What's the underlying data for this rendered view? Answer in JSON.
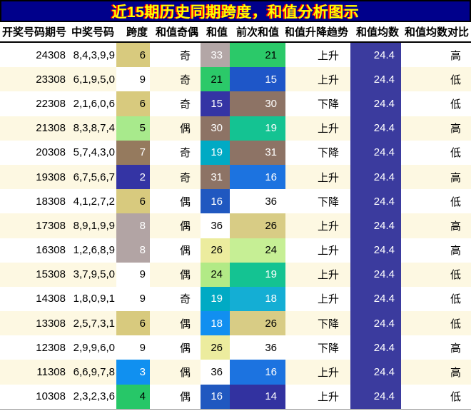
{
  "title": "近15期历史同期跨度，和值分析图示",
  "colors": {
    "title_bg": "#00008b",
    "title_text": "#ffff00",
    "title_shadow": "#ff0000",
    "row_stripe_bg": "#fdf8e2",
    "row_bg": "#ffffff",
    "mean_column_bg": "#3b3b9e",
    "mean_column_text": "#ffffff",
    "border": "#000000"
  },
  "chart_data": {
    "type": "table",
    "title": "近15期历史同期跨度，和值分析图示",
    "columns": [
      "开奖号码期号",
      "中奖号码",
      "跨度",
      "和值奇偶",
      "和值",
      "前次和值",
      "和值升降趋势",
      "和值均数",
      "和值均数对比"
    ],
    "rows": [
      {
        "cells": [
          {
            "t": "24308"
          },
          {
            "t": "8,4,3,9,9"
          },
          {
            "t": "6",
            "bg": "#d8ca7e"
          },
          {
            "t": "奇"
          },
          {
            "t": "33",
            "bg": "#b3a6a6",
            "fg": "#ffffff"
          },
          {
            "t": "21",
            "bg": "#2bc969"
          },
          {
            "t": "上升"
          },
          {
            "t": "24.4"
          },
          {
            "t": "高"
          }
        ]
      },
      {
        "cells": [
          {
            "t": "23308"
          },
          {
            "t": "6,1,9,5,0"
          },
          {
            "t": "9",
            "bg": "#ffffff"
          },
          {
            "t": "奇"
          },
          {
            "t": "21",
            "bg": "#2bc969"
          },
          {
            "t": "15",
            "bg": "#1e56c8",
            "fg": "#ffffff"
          },
          {
            "t": "上升"
          },
          {
            "t": "24.4"
          },
          {
            "t": "低"
          }
        ]
      },
      {
        "cells": [
          {
            "t": "22308"
          },
          {
            "t": "2,1,6,0,6"
          },
          {
            "t": "6",
            "bg": "#d8ca7e"
          },
          {
            "t": "奇"
          },
          {
            "t": "15",
            "bg": "#3434a4",
            "fg": "#ffffff"
          },
          {
            "t": "30",
            "bg": "#8d7365",
            "fg": "#ffffff"
          },
          {
            "t": "下降"
          },
          {
            "t": "24.4"
          },
          {
            "t": "低"
          }
        ]
      },
      {
        "cells": [
          {
            "t": "21308"
          },
          {
            "t": "8,3,8,7,4"
          },
          {
            "t": "5",
            "bg": "#a8ea8c"
          },
          {
            "t": "偶"
          },
          {
            "t": "30",
            "bg": "#8d7365",
            "fg": "#ffffff"
          },
          {
            "t": "19",
            "bg": "#14c392",
            "fg": "#ffffff"
          },
          {
            "t": "上升"
          },
          {
            "t": "24.4"
          },
          {
            "t": "高"
          }
        ]
      },
      {
        "cells": [
          {
            "t": "20308"
          },
          {
            "t": "5,7,4,3,0"
          },
          {
            "t": "7",
            "bg": "#957a5e",
            "fg": "#ffffff"
          },
          {
            "t": "奇"
          },
          {
            "t": "19",
            "bg": "#00aac4",
            "fg": "#ffffff"
          },
          {
            "t": "31",
            "bg": "#8d7365",
            "fg": "#ffffff"
          },
          {
            "t": "下降"
          },
          {
            "t": "24.4"
          },
          {
            "t": "低"
          }
        ]
      },
      {
        "cells": [
          {
            "t": "19308"
          },
          {
            "t": "6,7,5,6,7"
          },
          {
            "t": "2",
            "bg": "#3434a4",
            "fg": "#ffffff"
          },
          {
            "t": "奇"
          },
          {
            "t": "31",
            "bg": "#8d7365",
            "fg": "#ffffff"
          },
          {
            "t": "16",
            "bg": "#1c73e0",
            "fg": "#ffffff"
          },
          {
            "t": "上升"
          },
          {
            "t": "24.4"
          },
          {
            "t": "高"
          }
        ]
      },
      {
        "cells": [
          {
            "t": "18308"
          },
          {
            "t": "4,1,2,7,2"
          },
          {
            "t": "6",
            "bg": "#d8ca7e"
          },
          {
            "t": "偶"
          },
          {
            "t": "16",
            "bg": "#2058c0",
            "fg": "#ffffff"
          },
          {
            "t": "36",
            "bg": "#ffffff"
          },
          {
            "t": "下降"
          },
          {
            "t": "24.4"
          },
          {
            "t": "低"
          }
        ]
      },
      {
        "cells": [
          {
            "t": "17308"
          },
          {
            "t": "8,9,1,9,9"
          },
          {
            "t": "8",
            "bg": "#b2a4a4",
            "fg": "#ffffff"
          },
          {
            "t": "偶"
          },
          {
            "t": "36",
            "bg": "#ffffff"
          },
          {
            "t": "26",
            "bg": "#d8cc85"
          },
          {
            "t": "上升"
          },
          {
            "t": "24.4"
          },
          {
            "t": "高"
          }
        ]
      },
      {
        "cells": [
          {
            "t": "16308"
          },
          {
            "t": "1,2,6,8,9"
          },
          {
            "t": "8",
            "bg": "#b2a4a4",
            "fg": "#ffffff"
          },
          {
            "t": "偶"
          },
          {
            "t": "26",
            "bg": "#ecec9e"
          },
          {
            "t": "24",
            "bg": "#c6ef95"
          },
          {
            "t": "上升"
          },
          {
            "t": "24.4"
          },
          {
            "t": "高"
          }
        ]
      },
      {
        "cells": [
          {
            "t": "15308"
          },
          {
            "t": "3,7,9,5,0"
          },
          {
            "t": "9",
            "bg": "#ffffff"
          },
          {
            "t": "偶"
          },
          {
            "t": "24",
            "bg": "#b2ea86"
          },
          {
            "t": "19",
            "bg": "#14c392",
            "fg": "#ffffff"
          },
          {
            "t": "上升"
          },
          {
            "t": "24.4"
          },
          {
            "t": "低"
          }
        ]
      },
      {
        "cells": [
          {
            "t": "14308"
          },
          {
            "t": "1,8,0,9,1"
          },
          {
            "t": "9",
            "bg": "#ffffff"
          },
          {
            "t": "奇"
          },
          {
            "t": "19",
            "bg": "#00aac4",
            "fg": "#ffffff"
          },
          {
            "t": "18",
            "bg": "#14aed4",
            "fg": "#ffffff"
          },
          {
            "t": "上升"
          },
          {
            "t": "24.4"
          },
          {
            "t": "低"
          }
        ]
      },
      {
        "cells": [
          {
            "t": "13308"
          },
          {
            "t": "2,5,7,3,1"
          },
          {
            "t": "6",
            "bg": "#d8ca7e"
          },
          {
            "t": "偶"
          },
          {
            "t": "18",
            "bg": "#118ff0",
            "fg": "#ffffff"
          },
          {
            "t": "26",
            "bg": "#d8cc85"
          },
          {
            "t": "下降"
          },
          {
            "t": "24.4"
          },
          {
            "t": "低"
          }
        ]
      },
      {
        "cells": [
          {
            "t": "12308"
          },
          {
            "t": "2,9,9,6,0"
          },
          {
            "t": "9",
            "bg": "#ffffff"
          },
          {
            "t": "偶"
          },
          {
            "t": "26",
            "bg": "#ecec9e"
          },
          {
            "t": "36",
            "bg": "#ffffff"
          },
          {
            "t": "下降"
          },
          {
            "t": "24.4"
          },
          {
            "t": "高"
          }
        ]
      },
      {
        "cells": [
          {
            "t": "11308"
          },
          {
            "t": "6,6,9,7,8"
          },
          {
            "t": "3",
            "bg": "#1090f0",
            "fg": "#ffffff"
          },
          {
            "t": "偶"
          },
          {
            "t": "36",
            "bg": "#ffffff"
          },
          {
            "t": "16",
            "bg": "#1c73e0",
            "fg": "#ffffff"
          },
          {
            "t": "上升"
          },
          {
            "t": "24.4"
          },
          {
            "t": "高"
          }
        ]
      },
      {
        "cells": [
          {
            "t": "10308"
          },
          {
            "t": "2,3,2,3,6"
          },
          {
            "t": "4",
            "bg": "#27c768"
          },
          {
            "t": "偶"
          },
          {
            "t": "16",
            "bg": "#2058c0",
            "fg": "#ffffff"
          },
          {
            "t": "14",
            "bg": "#3232a0",
            "fg": "#ffffff"
          },
          {
            "t": "上升"
          },
          {
            "t": "24.4"
          },
          {
            "t": "低"
          }
        ]
      }
    ]
  }
}
